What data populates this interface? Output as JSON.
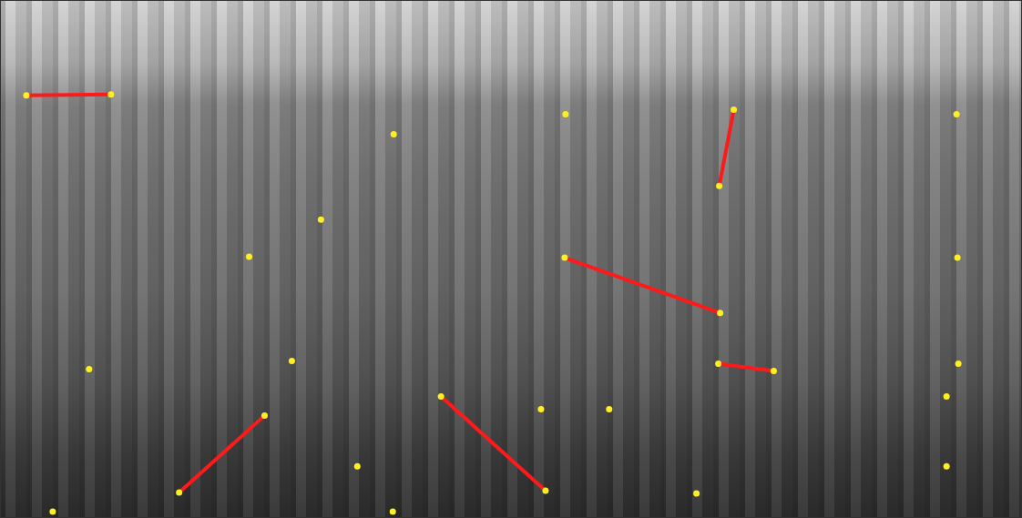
{
  "chart_data": {
    "type": "scatter",
    "xlim": [
      0,
      1122
    ],
    "ylim": [
      0,
      569
    ],
    "tick_labels": false,
    "grid": false,
    "series": [
      {
        "type": "line",
        "color": "#ff1a1a",
        "line_style": "solid",
        "segments": [
          [
            [
              28,
              465
            ],
            [
              121,
              466
            ]
          ],
          [
            [
              290,
              112
            ],
            [
              196,
              27
            ]
          ],
          [
            [
              484,
              133
            ],
            [
              599,
              29
            ]
          ],
          [
            [
              620,
              286
            ],
            [
              791,
              225
            ]
          ],
          [
            [
              806,
              449
            ],
            [
              790,
              365
            ]
          ],
          [
            [
              789,
              169
            ],
            [
              850,
              161
            ]
          ]
        ]
      },
      {
        "type": "scatter",
        "color": "#ffee22",
        "marker": "circle",
        "x": [
          28,
          121,
          432,
          352,
          273,
          97,
          320,
          290,
          196,
          57,
          392,
          431,
          484,
          599,
          594,
          669,
          621,
          620,
          791,
          806,
          790,
          789,
          850,
          765,
          1051,
          1052,
          1053,
          1040,
          1040
        ],
        "y": [
          465,
          466,
          422,
          328,
          287,
          163,
          172,
          112,
          27,
          6,
          56,
          6,
          133,
          29,
          119,
          119,
          444,
          286,
          225,
          449,
          365,
          169,
          161,
          26,
          444,
          286,
          169,
          133,
          56
        ]
      }
    ]
  }
}
